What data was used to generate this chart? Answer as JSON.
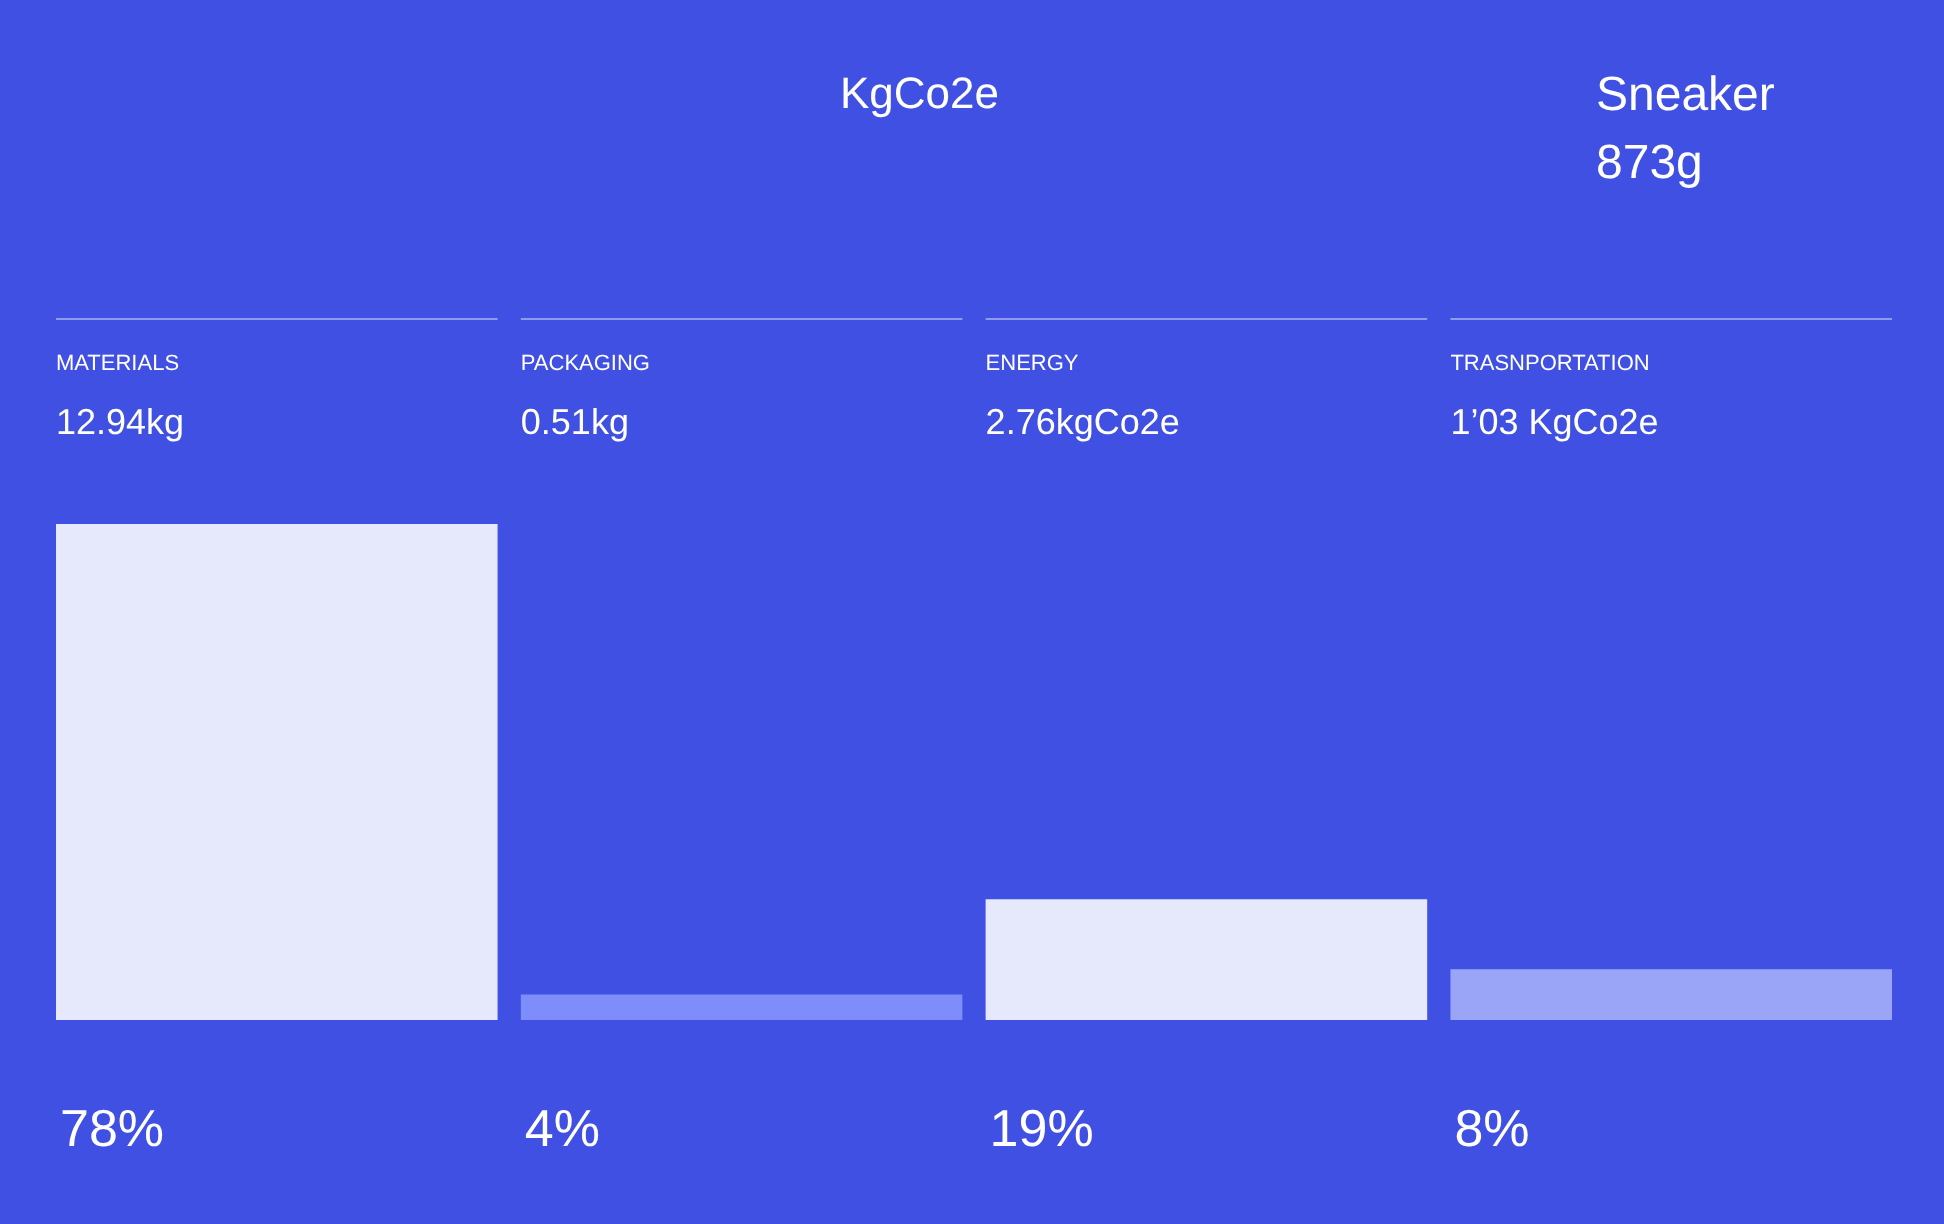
{
  "chart_data": {
    "type": "bar",
    "title": "KgCo2e",
    "categories": [
      "MATERIALS",
      "PACKAGING",
      "ENERGY",
      "TRASNPORTATION"
    ],
    "values": [
      78,
      4,
      19,
      8
    ],
    "colors": [
      "#e6e9fc",
      "#7f8dfb",
      "#e6e9fc",
      "#9aa5f8"
    ],
    "value_labels": [
      "78%",
      "4%",
      "19%",
      "8%"
    ],
    "annotations": [
      "12.94kg",
      "0.51kg",
      "2.76kgCo2e",
      "1’03 KgCo2e",
      "Sneaker",
      "873g"
    ]
  }
}
